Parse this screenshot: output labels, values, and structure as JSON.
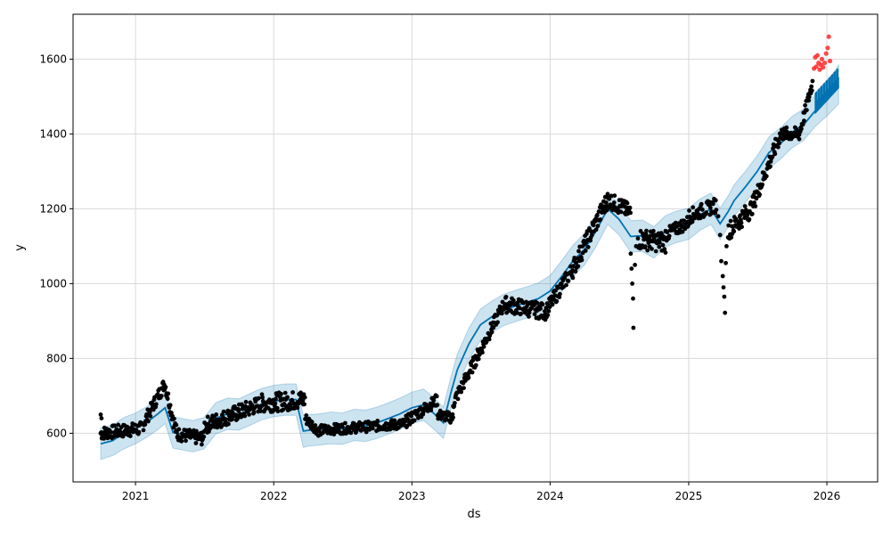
{
  "chart_data": {
    "type": "scatter",
    "title": "",
    "xlabel": "ds",
    "ylabel": "y",
    "xlim": [
      "2020-07-20",
      "2026-05-15"
    ],
    "ylim": [
      470,
      1720
    ],
    "x_ticks": [
      "2021",
      "2022",
      "2023",
      "2024",
      "2025",
      "2026"
    ],
    "y_ticks": [
      600,
      800,
      1000,
      1200,
      1400,
      1600
    ],
    "grid": true,
    "colors": {
      "observed": "#000000",
      "forecast_line": "#0072B2",
      "interval": "#0072B2",
      "future_actual": "#ff2a2a"
    },
    "forecast": {
      "dates": [
        "2020-10-01",
        "2020-11-01",
        "2020-12-01",
        "2021-01-01",
        "2021-02-01",
        "2021-03-01",
        "2021-03-20",
        "2021-04-10",
        "2021-05-01",
        "2021-06-01",
        "2021-07-01",
        "2021-08-01",
        "2021-09-01",
        "2021-10-01",
        "2021-11-01",
        "2021-12-01",
        "2022-01-01",
        "2022-02-01",
        "2022-03-01",
        "2022-03-20",
        "2022-04-05",
        "2022-05-01",
        "2022-06-01",
        "2022-07-01",
        "2022-08-01",
        "2022-09-01",
        "2022-10-01",
        "2022-11-01",
        "2022-12-01",
        "2023-01-01",
        "2023-02-01",
        "2023-03-01",
        "2023-03-25",
        "2023-04-15",
        "2023-05-01",
        "2023-06-01",
        "2023-07-01",
        "2023-08-01",
        "2023-09-01",
        "2023-10-01",
        "2023-11-01",
        "2023-12-01",
        "2024-01-01",
        "2024-02-01",
        "2024-03-01",
        "2024-04-01",
        "2024-05-01",
        "2024-06-01",
        "2024-07-01",
        "2024-08-01",
        "2024-09-01",
        "2024-10-01",
        "2024-11-01",
        "2024-12-01",
        "2025-01-01",
        "2025-02-01",
        "2025-03-01",
        "2025-03-25",
        "2025-04-15",
        "2025-05-01",
        "2025-06-01",
        "2025-07-01",
        "2025-08-01",
        "2025-09-01",
        "2025-10-01",
        "2025-11-01",
        "2025-12-01",
        "2026-01-01",
        "2026-02-01"
      ],
      "yhat": [
        572,
        580,
        600,
        612,
        630,
        652,
        668,
        602,
        598,
        592,
        600,
        640,
        652,
        650,
        665,
        678,
        686,
        690,
        690,
        606,
        608,
        610,
        615,
        612,
        622,
        620,
        628,
        640,
        652,
        668,
        676,
        652,
        628,
        712,
        770,
        840,
        890,
        912,
        930,
        940,
        950,
        960,
        980,
        1020,
        1060,
        1092,
        1140,
        1200,
        1172,
        1126,
        1128,
        1110,
        1140,
        1152,
        1160,
        1185,
        1200,
        1160,
        1192,
        1222,
        1260,
        1300,
        1350,
        1375,
        1405,
        1425,
        1462,
        1490,
        1530
      ],
      "yhat_lower": [
        530,
        540,
        558,
        572,
        590,
        610,
        626,
        560,
        556,
        550,
        558,
        598,
        610,
        608,
        622,
        636,
        644,
        648,
        648,
        562,
        566,
        568,
        572,
        570,
        580,
        578,
        586,
        598,
        610,
        626,
        634,
        610,
        586,
        670,
        728,
        798,
        848,
        870,
        888,
        898,
        908,
        918,
        938,
        978,
        1018,
        1050,
        1098,
        1158,
        1130,
        1084,
        1086,
        1068,
        1098,
        1110,
        1118,
        1143,
        1158,
        1118,
        1150,
        1180,
        1218,
        1258,
        1308,
        1333,
        1363,
        1383,
        1420,
        1448,
        1480
      ],
      "yhat_upper": [
        615,
        622,
        642,
        654,
        672,
        694,
        710,
        644,
        640,
        634,
        642,
        682,
        694,
        692,
        707,
        720,
        728,
        732,
        732,
        648,
        650,
        652,
        657,
        654,
        664,
        662,
        670,
        682,
        694,
        710,
        718,
        694,
        670,
        754,
        812,
        882,
        932,
        954,
        972,
        982,
        992,
        1002,
        1022,
        1062,
        1102,
        1134,
        1182,
        1242,
        1214,
        1168,
        1170,
        1152,
        1182,
        1194,
        1202,
        1227,
        1242,
        1202,
        1234,
        1264,
        1302,
        1342,
        1392,
        1417,
        1447,
        1467,
        1504,
        1535,
        1585
      ]
    },
    "observed_segments": [
      {
        "start": "2020-10-01",
        "end": "2021-01-15",
        "v0": 600,
        "v1": 612,
        "amp": 18
      },
      {
        "start": "2021-01-15",
        "end": "2021-03-20",
        "v0": 612,
        "v1": 735,
        "amp": 18
      },
      {
        "start": "2021-03-20",
        "end": "2021-04-20",
        "v0": 730,
        "v1": 598,
        "amp": 20
      },
      {
        "start": "2021-04-20",
        "end": "2021-07-01",
        "v0": 598,
        "v1": 585,
        "amp": 18
      },
      {
        "start": "2021-07-01",
        "end": "2021-12-01",
        "v0": 620,
        "v1": 680,
        "amp": 22
      },
      {
        "start": "2021-12-01",
        "end": "2022-03-25",
        "v0": 680,
        "v1": 690,
        "amp": 25
      },
      {
        "start": "2022-03-25",
        "end": "2022-05-01",
        "v0": 640,
        "v1": 605,
        "amp": 14
      },
      {
        "start": "2022-05-01",
        "end": "2022-12-15",
        "v0": 608,
        "v1": 625,
        "amp": 14
      },
      {
        "start": "2022-12-15",
        "end": "2023-03-10",
        "v0": 630,
        "v1": 690,
        "amp": 16
      },
      {
        "start": "2023-03-10",
        "end": "2023-04-20",
        "v0": 650,
        "v1": 640,
        "amp": 14
      },
      {
        "start": "2023-04-20",
        "end": "2023-09-01",
        "v0": 680,
        "v1": 945,
        "amp": 18
      },
      {
        "start": "2023-09-01",
        "end": "2023-12-20",
        "v0": 945,
        "v1": 925,
        "amp": 22
      },
      {
        "start": "2023-12-20",
        "end": "2024-03-01",
        "v0": 925,
        "v1": 1040,
        "amp": 20
      },
      {
        "start": "2024-03-01",
        "end": "2024-06-01",
        "v0": 1040,
        "v1": 1225,
        "amp": 25
      },
      {
        "start": "2024-06-01",
        "end": "2024-08-01",
        "v0": 1225,
        "v1": 1190,
        "amp": 22
      },
      {
        "start": "2024-08-20",
        "end": "2024-11-01",
        "v0": 1120,
        "v1": 1110,
        "amp": 28
      },
      {
        "start": "2024-11-01",
        "end": "2025-01-01",
        "v0": 1130,
        "v1": 1165,
        "amp": 18
      },
      {
        "start": "2025-01-01",
        "end": "2025-03-15",
        "v0": 1180,
        "v1": 1210,
        "amp": 20
      },
      {
        "start": "2025-04-15",
        "end": "2025-06-15",
        "v0": 1140,
        "v1": 1200,
        "amp": 25
      },
      {
        "start": "2025-06-15",
        "end": "2025-09-01",
        "v0": 1200,
        "v1": 1400,
        "amp": 22
      },
      {
        "start": "2025-09-01",
        "end": "2025-10-20",
        "v0": 1400,
        "v1": 1400,
        "amp": 18
      },
      {
        "start": "2025-10-20",
        "end": "2025-11-25",
        "v0": 1400,
        "v1": 1540,
        "amp": 18
      }
    ],
    "observed_extra": [
      {
        "x": "2020-10-01",
        "y": 650
      },
      {
        "x": "2020-10-03",
        "y": 640
      },
      {
        "x": "2024-08-01",
        "y": 1080
      },
      {
        "x": "2024-08-03",
        "y": 1040
      },
      {
        "x": "2024-08-05",
        "y": 1000
      },
      {
        "x": "2024-08-07",
        "y": 960
      },
      {
        "x": "2024-08-08",
        "y": 882
      },
      {
        "x": "2024-08-12",
        "y": 1050
      },
      {
        "x": "2024-08-15",
        "y": 1100
      },
      {
        "x": "2025-03-20",
        "y": 1180
      },
      {
        "x": "2025-03-25",
        "y": 1130
      },
      {
        "x": "2025-03-28",
        "y": 1060
      },
      {
        "x": "2025-04-01",
        "y": 1020
      },
      {
        "x": "2025-04-03",
        "y": 990
      },
      {
        "x": "2025-04-05",
        "y": 965
      },
      {
        "x": "2025-04-07",
        "y": 922
      },
      {
        "x": "2025-04-09",
        "y": 1055
      },
      {
        "x": "2025-04-11",
        "y": 1100
      }
    ],
    "future_actual": [
      {
        "x": "2025-11-28",
        "y": 1575
      },
      {
        "x": "2025-12-01",
        "y": 1605
      },
      {
        "x": "2025-12-04",
        "y": 1580
      },
      {
        "x": "2025-12-07",
        "y": 1610
      },
      {
        "x": "2025-12-10",
        "y": 1590
      },
      {
        "x": "2025-12-13",
        "y": 1572
      },
      {
        "x": "2025-12-16",
        "y": 1585
      },
      {
        "x": "2025-12-19",
        "y": 1600
      },
      {
        "x": "2025-12-22",
        "y": 1578
      },
      {
        "x": "2025-12-26",
        "y": 1590
      },
      {
        "x": "2025-12-30",
        "y": 1615
      },
      {
        "x": "2026-01-03",
        "y": 1630
      },
      {
        "x": "2026-01-06",
        "y": 1660
      },
      {
        "x": "2026-01-09",
        "y": 1595
      }
    ]
  }
}
